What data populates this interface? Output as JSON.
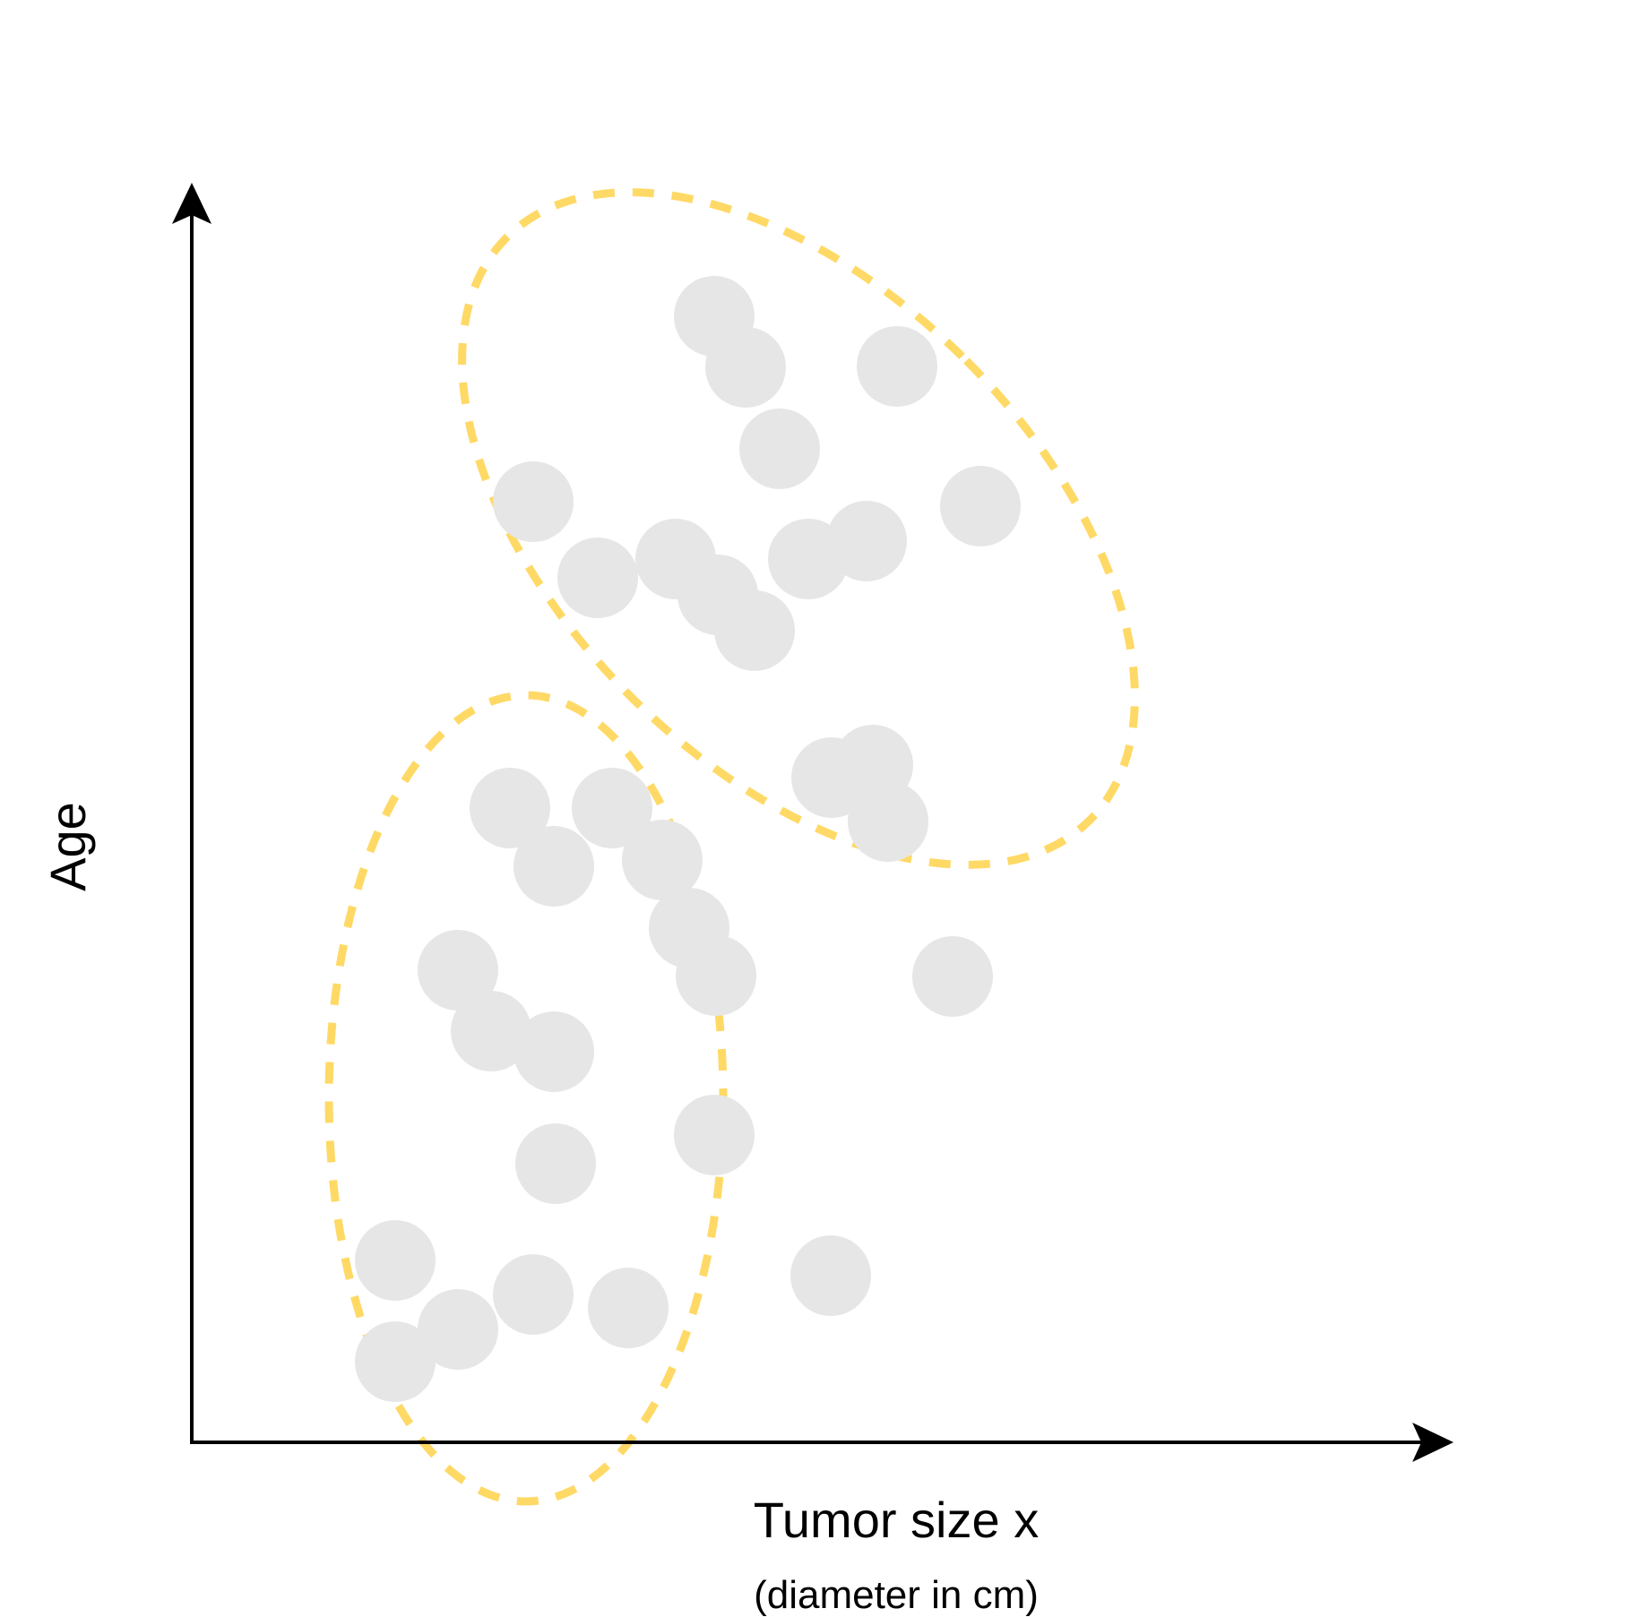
{
  "chart_data": {
    "type": "scatter",
    "xlabel": "Tumor size x",
    "xlabel_sub": "(diameter in cm)",
    "ylabel": "Age",
    "grid": false,
    "ticks": false,
    "points": [
      {
        "x": 3.81,
        "y": 10.5
      },
      {
        "x": 4.53,
        "y": 9.65
      },
      {
        "x": 5.4,
        "y": 9.86
      },
      {
        "x": 6.56,
        "y": 11.09
      },
      {
        "x": 7.53,
        "y": 10.06
      },
      {
        "x": 8.8,
        "y": 10.45
      },
      {
        "x": 7.87,
        "y": 12.01
      },
      {
        "x": 5.83,
        "y": 12.57
      },
      {
        "x": 6.18,
        "y": 12.0
      },
      {
        "x": 5.87,
        "y": 9.46
      },
      {
        "x": 6.28,
        "y": 9.06
      },
      {
        "x": 6.88,
        "y": 9.86
      },
      {
        "x": 7.14,
        "y": 7.42
      },
      {
        "x": 7.6,
        "y": 7.56
      },
      {
        "x": 7.77,
        "y": 6.93
      },
      {
        "x": 8.49,
        "y": 5.2
      },
      {
        "x": 3.55,
        "y": 7.08
      },
      {
        "x": 4.69,
        "y": 7.08
      },
      {
        "x": 4.04,
        "y": 6.43
      },
      {
        "x": 5.25,
        "y": 6.5
      },
      {
        "x": 5.55,
        "y": 5.74
      },
      {
        "x": 2.97,
        "y": 5.27
      },
      {
        "x": 3.34,
        "y": 4.59
      },
      {
        "x": 4.04,
        "y": 4.36
      },
      {
        "x": 4.06,
        "y": 3.11
      },
      {
        "x": 5.85,
        "y": 5.21
      },
      {
        "x": 5.83,
        "y": 3.43
      },
      {
        "x": 2.27,
        "y": 2.03
      },
      {
        "x": 3.81,
        "y": 1.65
      },
      {
        "x": 4.87,
        "y": 1.5
      },
      {
        "x": 2.97,
        "y": 1.26
      },
      {
        "x": 2.27,
        "y": 0.9
      },
      {
        "x": 7.13,
        "y": 1.86
      }
    ],
    "clusters": [
      {
        "cx": 6.77,
        "cy": 10.2,
        "rx": 2.65,
        "ry": 4.6,
        "angle_deg": -45
      },
      {
        "cx": 3.73,
        "cy": 3.84,
        "rx": 2.2,
        "ry": 4.5,
        "angle_deg": 0
      }
    ],
    "colors": {
      "point": "#e6e6e6",
      "cluster_outline": "#ffd966",
      "axis": "#000000"
    }
  }
}
